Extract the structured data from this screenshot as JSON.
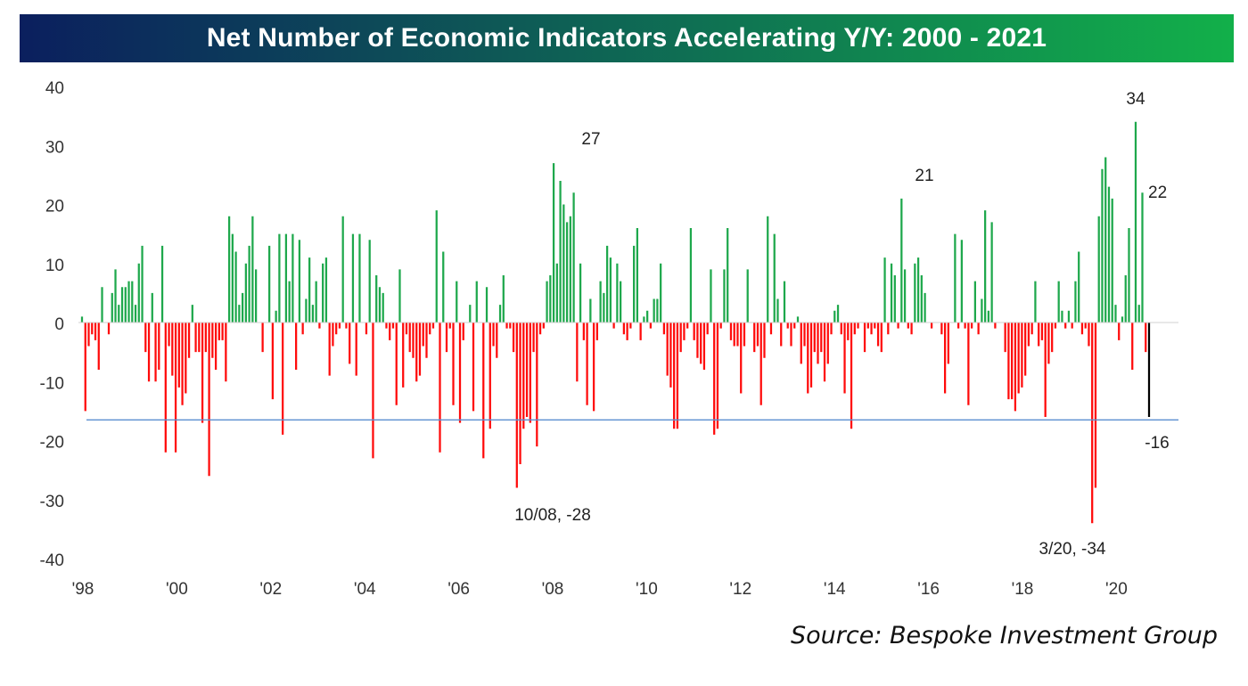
{
  "chart_data": {
    "type": "bar",
    "title": "Net Number of Economic Indicators Accelerating Y/Y: 2000 - 2021",
    "source": "Source: Bespoke Investment Group",
    "ylim": [
      -40,
      40
    ],
    "yticks": [
      "40",
      "30",
      "20",
      "10",
      "0",
      "-10",
      "-20",
      "-30",
      "-40"
    ],
    "xticks": [
      "'98",
      "'00",
      "'02",
      "'04",
      "'06",
      "'08",
      "'10",
      "'12",
      "'14",
      "'16",
      "'18",
      "'20"
    ],
    "x_start_year": 1998,
    "reference_level": -16.5,
    "colors": {
      "positive": "#1ea84c",
      "negative": "#ff0a0a",
      "latest": "#000000",
      "reference": "#5b8fd0",
      "title_left": "#0b1f5e",
      "title_right": "#12b04a"
    },
    "annotations": [
      {
        "text": "27",
        "value": 27,
        "year_frac": 2008.9
      },
      {
        "text": "10/08, -28",
        "value": -28,
        "year_frac": 2008.0
      },
      {
        "text": "21",
        "value": 21,
        "year_frac": 2016.0
      },
      {
        "text": "34",
        "value": 34,
        "year_frac": 2020.7
      },
      {
        "text": "22",
        "value": 22,
        "year_frac": 2020.9
      },
      {
        "text": "3/20, -34",
        "value": -34,
        "year_frac": 2019.5
      },
      {
        "text": "-16",
        "value": -16,
        "year_frac": 2021.1
      }
    ],
    "values": [
      1,
      -15,
      -4,
      -2,
      -3,
      -8,
      6,
      0,
      -2,
      5,
      9,
      3,
      6,
      6,
      7,
      7,
      3,
      10,
      13,
      -5,
      -10,
      5,
      -10,
      -8,
      13,
      -22,
      -4,
      -9,
      -22,
      -11,
      -14,
      -12,
      -6,
      3,
      -5,
      -5,
      -17,
      -5,
      -26,
      -6,
      -8,
      -3,
      -3,
      -10,
      18,
      15,
      12,
      3,
      5,
      10,
      13,
      18,
      9,
      0,
      -5,
      0,
      13,
      -13,
      2,
      15,
      -19,
      15,
      7,
      15,
      -8,
      14,
      -2,
      4,
      11,
      3,
      7,
      -1,
      10,
      11,
      -9,
      -4,
      -2,
      -1,
      18,
      -1,
      -7,
      15,
      -9,
      15,
      0,
      -2,
      14,
      -23,
      8,
      6,
      5,
      -1,
      -3,
      -1,
      -14,
      9,
      -11,
      -2,
      -5,
      -6,
      -10,
      -9,
      -4,
      -6,
      -2,
      -1,
      19,
      -22,
      12,
      -5,
      -1,
      -14,
      7,
      -17,
      -3,
      0,
      3,
      -15,
      7,
      0,
      -23,
      6,
      -18,
      -4,
      -6,
      3,
      8,
      -1,
      -1,
      -5,
      -28,
      -24,
      -18,
      -16,
      -17,
      -5,
      -21,
      -2,
      -1,
      7,
      8,
      27,
      10,
      24,
      20,
      17,
      18,
      22,
      -10,
      10,
      -3,
      -14,
      4,
      -15,
      -3,
      7,
      5,
      13,
      11,
      -1,
      10,
      7,
      -2,
      -3,
      -1,
      13,
      16,
      -3,
      1,
      2,
      -1,
      4,
      4,
      10,
      -2,
      -9,
      -11,
      -18,
      -18,
      -5,
      -3,
      -1,
      16,
      -3,
      -6,
      -7,
      -8,
      -2,
      9,
      -19,
      -18,
      -1,
      9,
      16,
      -3,
      -4,
      -4,
      -12,
      -4,
      9,
      0,
      -5,
      -4,
      -14,
      -6,
      18,
      -2,
      15,
      4,
      -4,
      7,
      -1,
      -4,
      -1,
      1,
      -7,
      -4,
      -12,
      -11,
      -5,
      -7,
      -5,
      -10,
      -7,
      -2,
      2,
      3,
      -2,
      -12,
      -3,
      -18,
      -2,
      -1,
      0,
      -5,
      -1,
      -2,
      -1,
      -4,
      -5,
      11,
      -2,
      10,
      8,
      -1,
      21,
      9,
      -1,
      -2,
      10,
      11,
      8,
      5,
      0,
      -1,
      0,
      0,
      -2,
      -12,
      -7,
      0,
      15,
      -1,
      14,
      -1,
      -14,
      -1,
      7,
      -2,
      4,
      19,
      2,
      17,
      -1,
      0,
      0,
      -5,
      -13,
      -13,
      -15,
      -12,
      -11,
      -9,
      -4,
      -2,
      7,
      -4,
      -3,
      -16,
      -7,
      -5,
      -1,
      7,
      2,
      -1,
      2,
      -1,
      7,
      12,
      -2,
      -1,
      -4,
      -34,
      -28,
      18,
      26,
      28,
      23,
      21,
      3,
      -3,
      1,
      8,
      16,
      -8,
      34,
      3,
      22,
      -5,
      -16
    ]
  }
}
